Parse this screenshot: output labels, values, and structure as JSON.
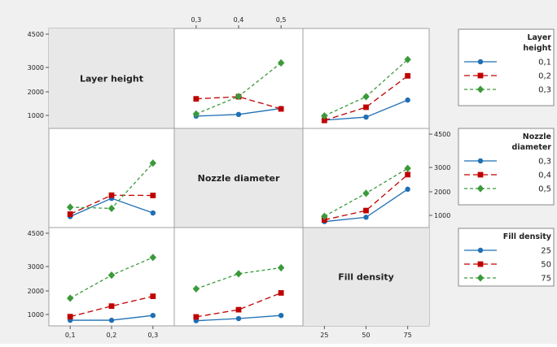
{
  "chart_data": {
    "type": "line",
    "title": "",
    "factors": [
      {
        "name": "Layer height",
        "levels": [
          "0,1",
          "0,2",
          "0,3"
        ]
      },
      {
        "name": "Nozzle diameter",
        "levels": [
          "0,3",
          "0,4",
          "0,5"
        ]
      },
      {
        "name": "Fill density",
        "levels": [
          "25",
          "50",
          "75"
        ]
      }
    ],
    "yaxis": {
      "ticks": [
        1000,
        2000,
        3000,
        4500
      ],
      "tick_labels": [
        "1000",
        "2000",
        "3000",
        "4500"
      ],
      "ylim": [
        500,
        4700
      ]
    },
    "top_ticks": [
      "0,3",
      "0,4",
      "0,5"
    ],
    "bottom_ticks_col1": [
      "0,1",
      "0,2",
      "0,3"
    ],
    "bottom_ticks_col3": [
      "25",
      "50",
      "75"
    ],
    "legends": [
      {
        "title_lines": [
          "Layer",
          "height"
        ],
        "entries": [
          "0,1",
          "0,2",
          "0,3"
        ]
      },
      {
        "title_lines": [
          "Nozzle",
          "diameter"
        ],
        "entries": [
          "0,3",
          "0,4",
          "0,5"
        ]
      },
      {
        "title_lines": [
          "Fill density"
        ],
        "entries": [
          "25",
          "50",
          "75"
        ]
      }
    ],
    "series_style": [
      {
        "color": "#1f6fb4",
        "marker": "circle",
        "dash": ""
      },
      {
        "color": "#c00000",
        "marker": "square",
        "dash": "7,4"
      },
      {
        "color": "#3a9a3a",
        "marker": "diamond",
        "dash": "4,3"
      }
    ],
    "panels": [
      {
        "row": 0,
        "col": 1,
        "x_factor": "Nozzle diameter",
        "trace_factor": "Layer height",
        "series": [
          {
            "level": "0,1",
            "values": [
              970,
              1040,
              1290
            ]
          },
          {
            "level": "0,2",
            "values": [
              1690,
              1780,
              1270
            ]
          },
          {
            "level": "0,3",
            "values": [
              1060,
              1790,
              3190
            ]
          }
        ]
      },
      {
        "row": 0,
        "col": 2,
        "x_factor": "Fill density",
        "trace_factor": "Layer height",
        "series": [
          {
            "level": "0,1",
            "values": [
              800,
              930,
              1640
            ]
          },
          {
            "level": "0,2",
            "values": [
              790,
              1340,
              2650
            ]
          },
          {
            "level": "0,3",
            "values": [
              980,
              1780,
              3330
            ]
          }
        ]
      },
      {
        "row": 1,
        "col": 0,
        "x_factor": "Layer height",
        "trace_factor": "Nozzle diameter",
        "series": [
          {
            "level": "0,3",
            "values": [
              950,
              1710,
              1100
            ]
          },
          {
            "level": "0,4",
            "values": [
              1050,
              1840,
              1830
            ]
          },
          {
            "level": "0,5",
            "values": [
              1340,
              1290,
              3180
            ]
          }
        ]
      },
      {
        "row": 1,
        "col": 2,
        "x_factor": "Fill density",
        "trace_factor": "Nozzle diameter",
        "series": [
          {
            "level": "0,3",
            "values": [
              740,
              920,
              2090
            ]
          },
          {
            "level": "0,4",
            "values": [
              810,
              1200,
              2700
            ]
          },
          {
            "level": "0,5",
            "values": [
              960,
              1920,
              2960
            ]
          }
        ]
      },
      {
        "row": 2,
        "col": 0,
        "x_factor": "Layer height",
        "trace_factor": "Fill density",
        "series": [
          {
            "level": "25",
            "values": [
              760,
              760,
              960
            ]
          },
          {
            "level": "50",
            "values": [
              910,
              1350,
              1760
            ]
          },
          {
            "level": "75",
            "values": [
              1680,
              2640,
              3380
            ]
          }
        ]
      },
      {
        "row": 2,
        "col": 1,
        "x_factor": "Nozzle diameter",
        "trace_factor": "Fill density",
        "series": [
          {
            "level": "25",
            "values": [
              740,
              830,
              960
            ]
          },
          {
            "level": "50",
            "values": [
              900,
              1200,
              1900
            ]
          },
          {
            "level": "75",
            "values": [
              2070,
              2700,
              2950
            ]
          }
        ]
      }
    ]
  }
}
